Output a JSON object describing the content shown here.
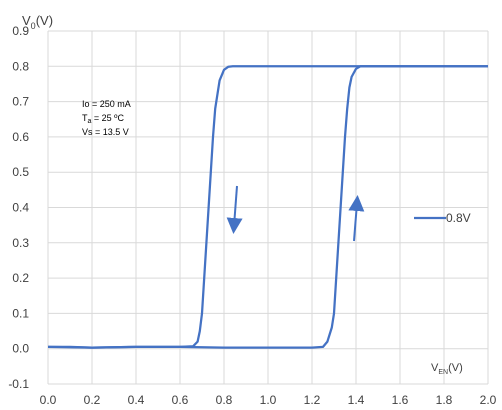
{
  "chart_data": {
    "type": "line",
    "ylabel_main": "V",
    "ylabel_sub": "0",
    "ylabel_unit": "(V)",
    "xlabel_main": "V",
    "xlabel_sub": "EN",
    "xlabel_unit": "(V)",
    "xlim": [
      0,
      2.0
    ],
    "ylim": [
      -0.1,
      0.9
    ],
    "x_ticks": [
      "0.0",
      "0.2",
      "0.4",
      "0.6",
      "0.8",
      "1.0",
      "1.2",
      "1.4",
      "1.6",
      "1.8",
      "2.0"
    ],
    "y_ticks": [
      "0.9",
      "0.8",
      "0.7",
      "0.6",
      "0.5",
      "0.4",
      "0.3",
      "0.2",
      "0.1",
      "0.0",
      "-0.1"
    ],
    "grid": true,
    "legend_placement": "right",
    "conditions": {
      "io": "Io = 250 mA",
      "ta_main": "T",
      "ta_sub": "a",
      "ta_rest": " = 25 ºC",
      "vs": "Vs = 13.5 V"
    },
    "series": [
      {
        "name": "0.8V",
        "color": "#4472C4",
        "falling": {
          "x": [
            2.0,
            1.6,
            1.2,
            1.0,
            0.9,
            0.86,
            0.84,
            0.82,
            0.8,
            0.78,
            0.76,
            0.75,
            0.74,
            0.73,
            0.72,
            0.71,
            0.7,
            0.69,
            0.68,
            0.66,
            0.6,
            0.4,
            0.2,
            0.1,
            0.0
          ],
          "y": [
            0.8,
            0.8,
            0.8,
            0.8,
            0.8,
            0.8,
            0.8,
            0.799,
            0.79,
            0.76,
            0.68,
            0.6,
            0.5,
            0.4,
            0.3,
            0.2,
            0.1,
            0.05,
            0.02,
            0.007,
            0.005,
            0.005,
            0.003,
            0.005,
            0.005
          ]
        },
        "rising": {
          "x": [
            0.0,
            0.2,
            0.4,
            0.6,
            0.8,
            1.0,
            1.2,
            1.25,
            1.27,
            1.29,
            1.3,
            1.31,
            1.32,
            1.33,
            1.34,
            1.35,
            1.36,
            1.37,
            1.38,
            1.4,
            1.42,
            1.45,
            1.5,
            1.8,
            2.0
          ],
          "y": [
            0.005,
            0.003,
            0.005,
            0.005,
            0.003,
            0.003,
            0.003,
            0.005,
            0.02,
            0.06,
            0.1,
            0.2,
            0.3,
            0.4,
            0.5,
            0.6,
            0.68,
            0.74,
            0.77,
            0.793,
            0.8,
            0.8,
            0.8,
            0.8,
            0.8
          ]
        }
      }
    ]
  }
}
